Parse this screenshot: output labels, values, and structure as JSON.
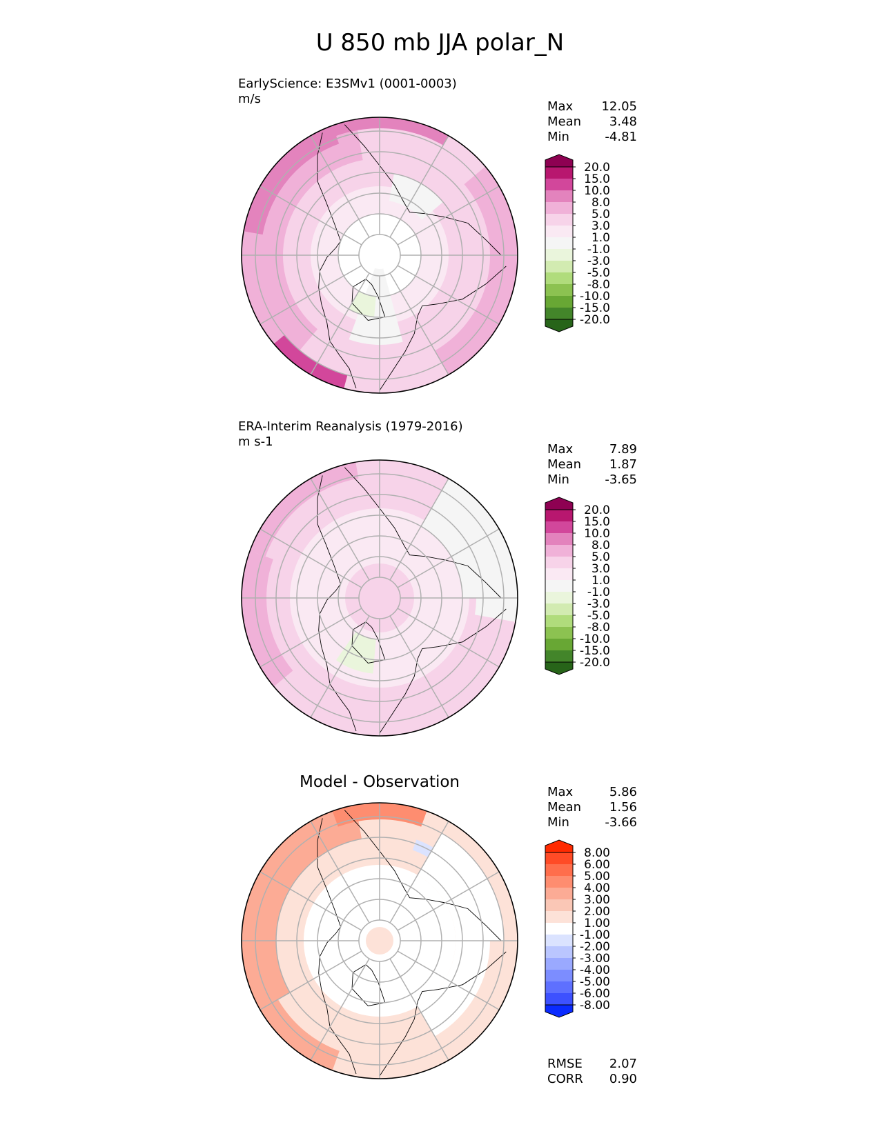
{
  "title": "U 850 mb JJA polar_N",
  "colors": {
    "accent": "#7a0145",
    "map_line": "#000000",
    "grid_line": "#b0b0b0"
  },
  "panels": [
    {
      "id": "test",
      "label_line1": "EarlyScience: E3SMv1 (0001-0003)",
      "label_line2": "m/s",
      "title": "",
      "stats": [
        {
          "label": "Max",
          "value": "12.05"
        },
        {
          "label": "Mean",
          "value": "3.48"
        },
        {
          "label": "Min",
          "value": "-4.81"
        }
      ],
      "colorbar": {
        "levels": [
          "20.0",
          "15.0",
          "10.0",
          "8.0",
          "5.0",
          "3.0",
          "1.0",
          "-1.0",
          "-3.0",
          "-5.0",
          "-8.0",
          "-10.0",
          "-15.0",
          "-20.0"
        ],
        "colors": [
          "#8e0152",
          "#b8176f",
          "#d2479b",
          "#e383bd",
          "#f0b1d8",
          "#f7d3e9",
          "#fae9f3",
          "#f5f5f5",
          "#eaf5dc",
          "#d2ebb1",
          "#b0dc7c",
          "#8cc251",
          "#68a734",
          "#43852a",
          "#276419"
        ]
      }
    },
    {
      "id": "reference",
      "label_line1": "ERA-Interim Reanalysis (1979-2016)",
      "label_line2": "m s-1",
      "title": "",
      "stats": [
        {
          "label": "Max",
          "value": "7.89"
        },
        {
          "label": "Mean",
          "value": "1.87"
        },
        {
          "label": "Min",
          "value": "-3.65"
        }
      ],
      "colorbar": {
        "levels": [
          "20.0",
          "15.0",
          "10.0",
          "8.0",
          "5.0",
          "3.0",
          "1.0",
          "-1.0",
          "-3.0",
          "-5.0",
          "-8.0",
          "-10.0",
          "-15.0",
          "-20.0"
        ],
        "colors": [
          "#8e0152",
          "#b8176f",
          "#d2479b",
          "#e383bd",
          "#f0b1d8",
          "#f7d3e9",
          "#fae9f3",
          "#f5f5f5",
          "#eaf5dc",
          "#d2ebb1",
          "#b0dc7c",
          "#8cc251",
          "#68a734",
          "#43852a",
          "#276419"
        ]
      }
    },
    {
      "id": "diff",
      "label_line1": "",
      "label_line2": "",
      "title": "Model - Observation",
      "stats": [
        {
          "label": "Max",
          "value": "5.86"
        },
        {
          "label": "Mean",
          "value": "1.56"
        },
        {
          "label": "Min",
          "value": "-3.66"
        }
      ],
      "metrics": [
        {
          "label": "RMSE",
          "value": "2.07"
        },
        {
          "label": "CORR",
          "value": "0.90"
        }
      ],
      "colorbar": {
        "levels": [
          "8.00",
          "6.00",
          "5.00",
          "4.00",
          "3.00",
          "2.00",
          "1.00",
          "-1.00",
          "-2.00",
          "-3.00",
          "-4.00",
          "-5.00",
          "-6.00",
          "-8.00"
        ],
        "colors": [
          "#ff2a00",
          "#ff4b26",
          "#ff6e4c",
          "#fe8d70",
          "#fcab95",
          "#fac7b6",
          "#fde2d8",
          "#ffffff",
          "#dbe3ff",
          "#bac6ff",
          "#9aa9ff",
          "#7c8dff",
          "#5e70ff",
          "#3d51ff",
          "#0a2aff"
        ]
      }
    }
  ],
  "chart_data": [
    {
      "type": "heatmap",
      "title": "EarlyScience: E3SMv1 (0001-0003)",
      "units": "m/s",
      "projection": "north polar stereographic",
      "variable": "U 850 mb JJA",
      "summary": {
        "max": 12.05,
        "mean": 3.48,
        "min": -4.81
      },
      "colorbar_levels": [
        -20,
        -15,
        -10,
        -8,
        -5,
        -3,
        -1,
        1,
        3,
        5,
        8,
        10,
        15,
        20
      ],
      "extend": "both"
    },
    {
      "type": "heatmap",
      "title": "ERA-Interim Reanalysis (1979-2016)",
      "units": "m s-1",
      "projection": "north polar stereographic",
      "variable": "U 850 mb JJA",
      "summary": {
        "max": 7.89,
        "mean": 1.87,
        "min": -3.65
      },
      "colorbar_levels": [
        -20,
        -15,
        -10,
        -8,
        -5,
        -3,
        -1,
        1,
        3,
        5,
        8,
        10,
        15,
        20
      ],
      "extend": "both"
    },
    {
      "type": "heatmap",
      "title": "Model - Observation",
      "projection": "north polar stereographic",
      "variable": "U 850 mb JJA difference",
      "summary": {
        "max": 5.86,
        "mean": 1.56,
        "min": -3.66,
        "rmse": 2.07,
        "corr": 0.9
      },
      "colorbar_levels": [
        -8,
        -6,
        -5,
        -4,
        -3,
        -2,
        -1,
        1,
        2,
        3,
        4,
        5,
        6,
        8
      ],
      "extend": "both"
    }
  ]
}
